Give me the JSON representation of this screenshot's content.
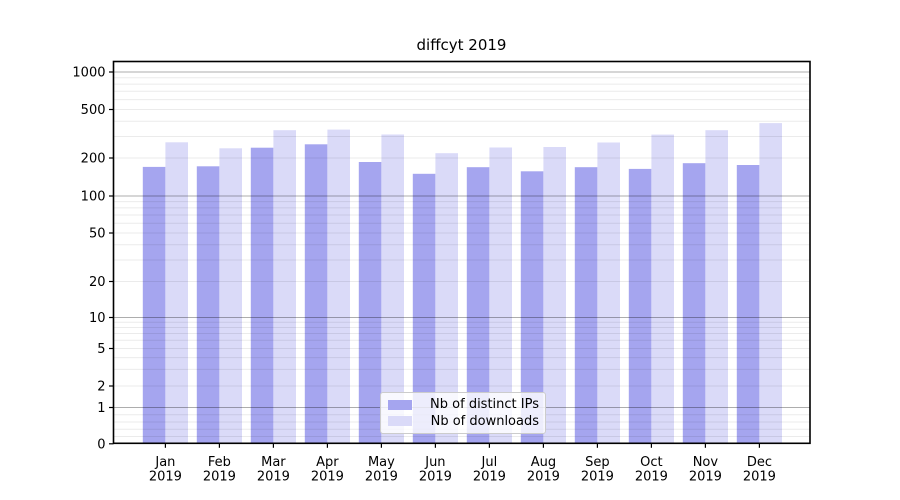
{
  "chart_data": {
    "type": "bar",
    "title": "diffcyt 2019",
    "categories": [
      "Jan",
      "Feb",
      "Mar",
      "Apr",
      "May",
      "Jun",
      "Jul",
      "Aug",
      "Sep",
      "Oct",
      "Nov",
      "Dec"
    ],
    "year": "2019",
    "series": [
      {
        "name": "Nb of distinct IPs",
        "color": "#a5a5ef",
        "values": [
          170,
          172,
          243,
          259,
          186,
          150,
          169,
          157,
          169,
          164,
          182,
          176
        ]
      },
      {
        "name": "Nb of downloads",
        "color": "#dadaf8",
        "values": [
          269,
          240,
          338,
          342,
          312,
          219,
          244,
          246,
          268,
          311,
          338,
          387
        ]
      }
    ],
    "yticks": [
      0,
      1,
      2,
      5,
      10,
      20,
      50,
      100,
      200,
      500,
      1000
    ],
    "ytick_labels": [
      "0",
      "1",
      "2",
      "5",
      "10",
      "20",
      "50",
      "100",
      "200",
      "500",
      "1000"
    ],
    "ylim": [
      0,
      1000
    ],
    "yscale": "symlog",
    "grid": true,
    "legend_position": "lower center",
    "xlabel": "",
    "ylabel": "",
    "colors": {
      "axis": "#000000",
      "grid_major": "rgba(0,0,0,0.32)",
      "grid_minor": "rgba(0,0,0,0.08)",
      "tick_label": "#000000"
    }
  }
}
